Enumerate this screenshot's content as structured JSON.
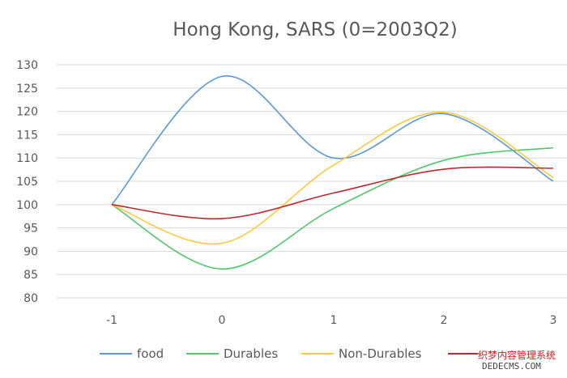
{
  "chart_data": {
    "type": "line",
    "title": "Hong Kong, SARS (0=2003Q2)",
    "xlabel": "",
    "ylabel": "",
    "x": [
      -1,
      0,
      1,
      2,
      3
    ],
    "x_tick_labels": [
      "-1",
      "0",
      "1",
      "2",
      "3"
    ],
    "y_tick_labels": [
      "80",
      "85",
      "90",
      "95",
      "100",
      "105",
      "110",
      "115",
      "120",
      "125",
      "130"
    ],
    "ylim": [
      80,
      130
    ],
    "grid": true,
    "smooth": true,
    "legend_position": "bottom",
    "series": [
      {
        "name": "food",
        "color": "#5b9bd5",
        "values": [
          100,
          127.5,
          110,
          119.5,
          105
        ]
      },
      {
        "name": "Durables",
        "color": "#4fc86b",
        "values": [
          100,
          86.2,
          99.2,
          109.5,
          112.2
        ]
      },
      {
        "name": "Non-Durables",
        "color": "#ffc83d",
        "values": [
          100,
          91.7,
          108.5,
          119.8,
          105.8
        ]
      },
      {
        "name": "",
        "color": "#c0282d",
        "values": [
          100,
          97,
          102.5,
          107.6,
          107.8
        ]
      }
    ]
  },
  "watermark": {
    "line1": "织梦内容管理系统",
    "line2": "DEDECMS.COM"
  }
}
